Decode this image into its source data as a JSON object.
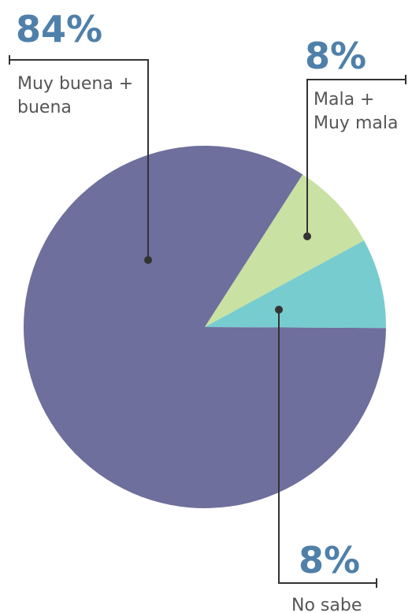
{
  "chart_data": {
    "type": "pie",
    "categories": [
      "Muy buena + buena",
      "Mala + Muy mala",
      "No sabe"
    ],
    "values": [
      84,
      8,
      8
    ],
    "value_labels": [
      "84%",
      "8%",
      "8%"
    ],
    "colors": [
      "#6e6f9c",
      "#c9e1a2",
      "#77cccf"
    ]
  }
}
